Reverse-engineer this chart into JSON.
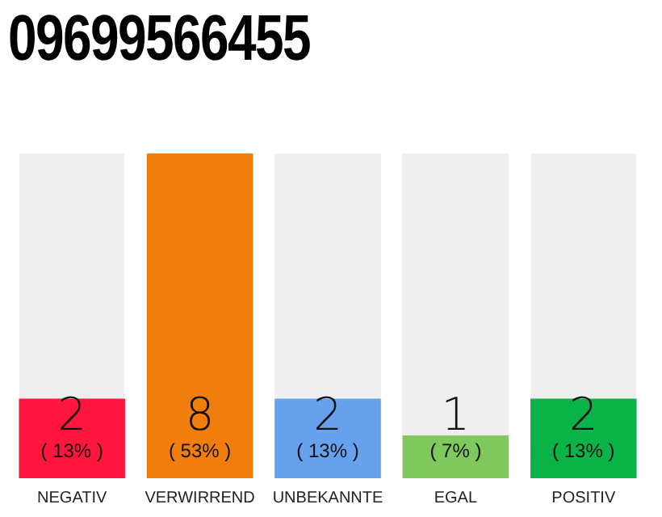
{
  "chart_data": {
    "type": "bar",
    "title": "09699566455",
    "categories": [
      "NEGATIV",
      "VERWIRREND",
      "UNBEKANNTE",
      "EGAL",
      "POSITIV"
    ],
    "values": [
      13,
      53,
      13,
      7,
      13
    ],
    "colors": [
      "#ff163c",
      "#f07d0c",
      "#67a0ec",
      "#7ec85e",
      "#0ab347"
    ],
    "value_labels": [
      "2\n( 13% )",
      "8\n( 53% )",
      "2\n( 13% )",
      "1\n( 7% )",
      "2\n( 13% )"
    ],
    "grid": false,
    "legend": false
  }
}
